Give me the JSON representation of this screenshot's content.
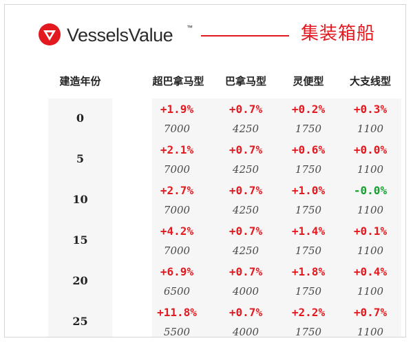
{
  "header": {
    "brand": "VesselsValue",
    "trademark": "™",
    "title": "集装箱船",
    "accent_color": "#e2191f",
    "logo_icon": "vesselsvalue-logo-icon"
  },
  "table": {
    "year_header": "建造年份",
    "columns": [
      "超巴拿马型",
      "巴拿马型",
      "灵便型",
      "大支线型"
    ],
    "rows": [
      {
        "year": "0",
        "cells": [
          {
            "change": "+1.9%",
            "value": "7000"
          },
          {
            "change": "+0.7%",
            "value": "4250"
          },
          {
            "change": "+0.2%",
            "value": "1750"
          },
          {
            "change": "+0.3%",
            "value": "1100"
          }
        ]
      },
      {
        "year": "5",
        "cells": [
          {
            "change": "+2.1%",
            "value": "7000"
          },
          {
            "change": "+0.7%",
            "value": "4250"
          },
          {
            "change": "+0.6%",
            "value": "1750"
          },
          {
            "change": "+0.0%",
            "value": "1100"
          }
        ]
      },
      {
        "year": "10",
        "cells": [
          {
            "change": "+2.7%",
            "value": "7000"
          },
          {
            "change": "+0.7%",
            "value": "4250"
          },
          {
            "change": "+1.0%",
            "value": "1750"
          },
          {
            "change": "-0.0%",
            "value": "1100"
          }
        ]
      },
      {
        "year": "15",
        "cells": [
          {
            "change": "+4.2%",
            "value": "7000"
          },
          {
            "change": "+0.7%",
            "value": "4250"
          },
          {
            "change": "+1.4%",
            "value": "1750"
          },
          {
            "change": "+0.1%",
            "value": "1100"
          }
        ]
      },
      {
        "year": "20",
        "cells": [
          {
            "change": "+6.9%",
            "value": "6500"
          },
          {
            "change": "+0.7%",
            "value": "4000"
          },
          {
            "change": "+1.8%",
            "value": "1750"
          },
          {
            "change": "+0.4%",
            "value": "1100"
          }
        ]
      },
      {
        "year": "25",
        "cells": [
          {
            "change": "+11.8%",
            "value": "5500"
          },
          {
            "change": "+0.7%",
            "value": "4000"
          },
          {
            "change": "+2.2%",
            "value": "1750"
          },
          {
            "change": "+0.7%",
            "value": "1100"
          }
        ]
      }
    ],
    "colors": {
      "positive": "#e2191f",
      "negative": "#16a031"
    }
  }
}
